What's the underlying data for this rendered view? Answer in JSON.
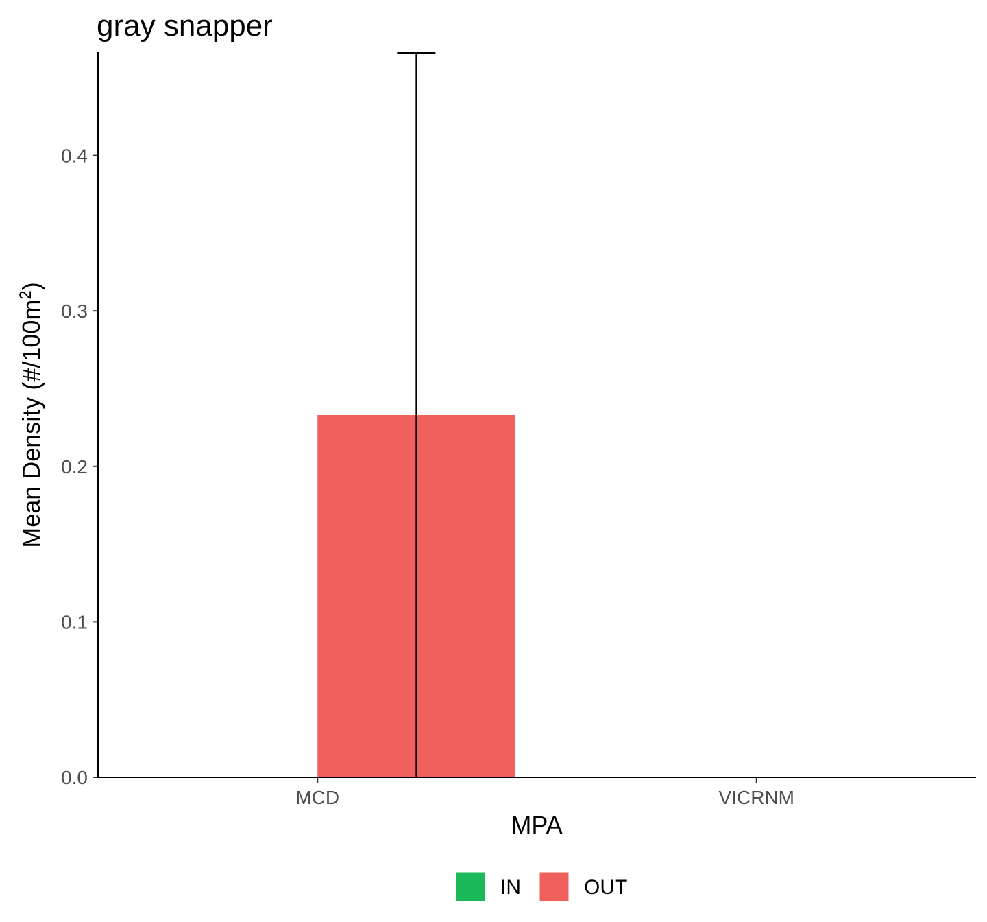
{
  "chart_data": {
    "type": "bar",
    "title": "gray snapper",
    "xlabel": "MPA",
    "ylabel": "Mean Density (#/100m",
    "ylabel_superscript": "2",
    "ylabel_close": ")",
    "categories": [
      "MCD",
      "VICRNM"
    ],
    "ylim": [
      0,
      0.466
    ],
    "yticks": [
      0.0,
      0.1,
      0.2,
      0.3,
      0.4
    ],
    "ytick_labels": [
      "0.0",
      "0.1",
      "0.2",
      "0.3",
      "0.4"
    ],
    "series": [
      {
        "name": "IN",
        "color": "#1ABA5B",
        "values": [
          0,
          0
        ],
        "error_upper": [
          0,
          0
        ],
        "error_lower": [
          0,
          0
        ]
      },
      {
        "name": "OUT",
        "color": "#F2605D",
        "values": [
          0.233,
          0
        ],
        "error_upper": [
          0.466,
          0
        ],
        "error_lower": [
          0,
          0
        ]
      }
    ],
    "legend": {
      "position": "bottom",
      "items": [
        "IN",
        "OUT"
      ]
    },
    "grid": false
  }
}
